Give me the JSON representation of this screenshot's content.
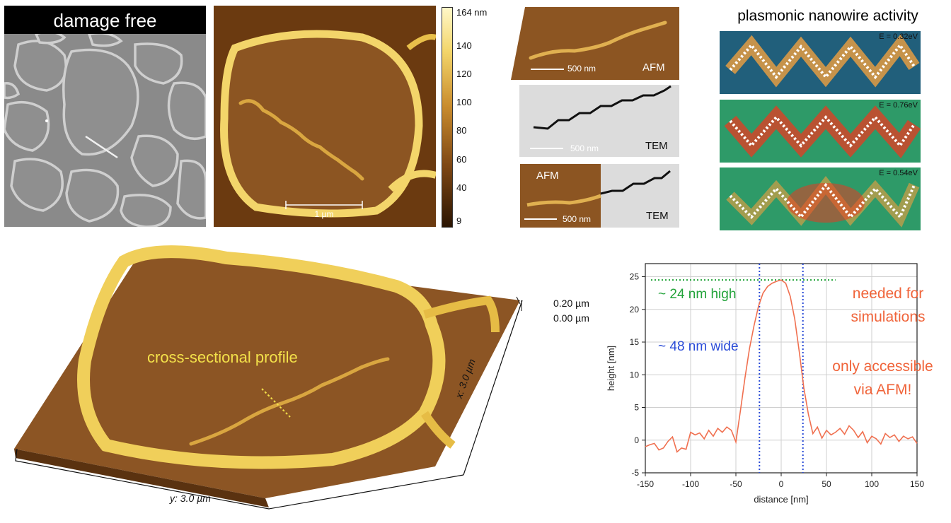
{
  "sem_panel": {
    "title": "damage free",
    "colors": {
      "background": "#8a8a8a",
      "network": "#c9c9c9",
      "title_bar": "#000000"
    }
  },
  "afm_panel": {
    "scalebar_label": "1 µm",
    "colorbar": {
      "max_label": "164 nm",
      "ticks": [
        "140",
        "120",
        "100",
        "80",
        "60",
        "40",
        "9"
      ]
    }
  },
  "correlative": {
    "afm_label": "AFM",
    "afm_scalebar": "500 nm",
    "tem_label": "TEM",
    "tem_scalebar": "500 nm",
    "combo_afm_label": "AFM",
    "combo_tem_label": "TEM",
    "combo_scalebar": "500 nm"
  },
  "plasmonic": {
    "title": "plasmonic nanowire activity",
    "maps": [
      {
        "energy": "E = 0.32eV"
      },
      {
        "energy": "E = 0.76eV"
      },
      {
        "energy": "E = 0.54eV"
      }
    ]
  },
  "afm3d": {
    "annotation": "cross-sectional profile",
    "z_top": "0.20 µm",
    "z_bottom": "0.00 µm",
    "x_axis": "x: 3.0 µm",
    "y_axis": "y: 3.0 µm"
  },
  "profile_notes": {
    "high": "~ 24 nm high",
    "wide": "~ 48 nm wide",
    "needed_line1": "needed for",
    "needed_line2": "simulations",
    "access_line1": "only accessible",
    "access_line2": "via AFM!",
    "colors": {
      "high": "#22a33a",
      "wide": "#2a4bd7",
      "note": "#f0643a",
      "curve": "#f07050"
    }
  },
  "chart_data": {
    "type": "line",
    "xlabel": "distance [nm]",
    "ylabel": "height [nm]",
    "xlim": [
      -150,
      150
    ],
    "ylim": [
      -5,
      27
    ],
    "xticks": [
      -150,
      -100,
      -50,
      0,
      50,
      100,
      150
    ],
    "yticks": [
      -5,
      0,
      5,
      10,
      15,
      20,
      25
    ],
    "grid": true,
    "series": [
      {
        "x": [
          -150,
          -145,
          -140,
          -135,
          -130,
          -125,
          -120,
          -115,
          -110,
          -105,
          -100,
          -95,
          -90,
          -85,
          -80,
          -75,
          -70,
          -65,
          -60,
          -55,
          -50,
          -45,
          -40,
          -35,
          -30,
          -25,
          -20,
          -15,
          -10,
          -5,
          0,
          5,
          10,
          15,
          20,
          25,
          30,
          35,
          40,
          45,
          50,
          55,
          60,
          65,
          70,
          75,
          80,
          85,
          90,
          95,
          100,
          105,
          110,
          115,
          120,
          125,
          130,
          135,
          140,
          145,
          150
        ],
        "y": [
          -1,
          -0.7,
          -0.5,
          -1.5,
          -1.2,
          -0.2,
          0.5,
          -1.8,
          -1.2,
          -1.4,
          1.2,
          0.8,
          1.1,
          0.2,
          1.5,
          0.6,
          1.8,
          1.2,
          2.0,
          1.5,
          -0.3,
          4.5,
          9.5,
          14.0,
          17.5,
          20.5,
          22.5,
          23.5,
          24.0,
          24.3,
          24.5,
          24.0,
          22.0,
          18.5,
          13.5,
          8.0,
          4.0,
          1.0,
          2.0,
          0.3,
          1.5,
          0.8,
          1.2,
          1.8,
          0.9,
          2.2,
          1.5,
          0.4,
          1.3,
          -0.4,
          0.6,
          0.2,
          -0.6,
          1.0,
          0.4,
          0.8,
          -0.2,
          0.6,
          0.2,
          0.5,
          -0.5
        ]
      }
    ],
    "annotations": [
      {
        "type": "hline",
        "y": 24.5,
        "style": "dotted",
        "color": "#22a33a"
      },
      {
        "type": "vline",
        "x": -24,
        "style": "dotted",
        "color": "#2a4bd7"
      },
      {
        "type": "vline",
        "x": 24,
        "style": "dotted",
        "color": "#2a4bd7"
      }
    ]
  }
}
